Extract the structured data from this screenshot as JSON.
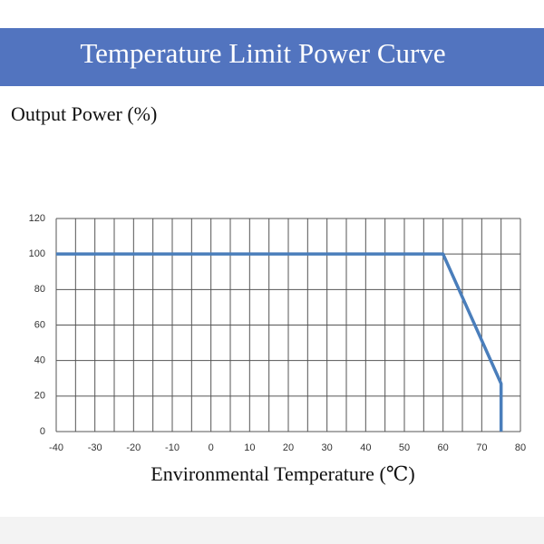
{
  "chart_data": {
    "type": "line",
    "title": "Temperature Limit Power Curve",
    "ylabel": "Output Power (%)",
    "xlabel": "Environmental Temperature (℃)",
    "x": [
      -40,
      60,
      75,
      75
    ],
    "series": [
      {
        "color": "#4a7ebb",
        "values": [
          100,
          100,
          27,
          0
        ]
      }
    ],
    "xlim": [
      -40,
      80
    ],
    "ylim": [
      0,
      120
    ],
    "xticks": [
      -40,
      -30,
      -20,
      -10,
      0,
      10,
      20,
      30,
      40,
      50,
      60,
      70,
      80
    ],
    "xminorticks": [
      -35,
      -25,
      -15,
      -5,
      5,
      15,
      25,
      35,
      45,
      55,
      65,
      75
    ],
    "yticks": [
      0,
      20,
      40,
      60,
      80,
      100,
      120
    ],
    "grid": true
  }
}
